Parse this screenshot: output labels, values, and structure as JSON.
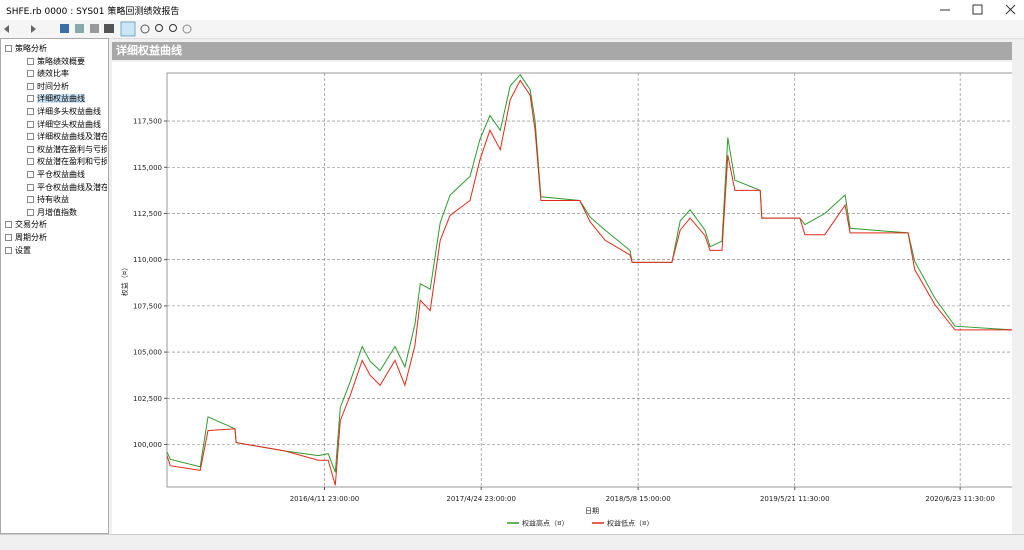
{
  "window": {
    "title": "SHFE.rb 0000 : SYS01 策略回测绩效报告"
  },
  "tree": {
    "items": [
      {
        "label": "策略分析",
        "level": 0
      },
      {
        "label": "策略绩效概要",
        "level": 1
      },
      {
        "label": "绩效比率",
        "level": 1
      },
      {
        "label": "时间分析",
        "level": 1
      },
      {
        "label": "详细权益曲线",
        "level": 1
      },
      {
        "label": "详细多头权益曲线",
        "level": 1
      },
      {
        "label": "详细空头权益曲线",
        "level": 1
      },
      {
        "label": "详细权益曲线及潜在",
        "level": 1
      },
      {
        "label": "权益潜在盈利与亏损",
        "level": 1
      },
      {
        "label": "权益潜在盈利和亏损",
        "level": 1
      },
      {
        "label": "平仓权益曲线",
        "level": 1
      },
      {
        "label": "平仓权益曲线及潜在",
        "level": 1
      },
      {
        "label": "持有收益",
        "level": 1
      },
      {
        "label": "月增值指数",
        "level": 1
      },
      {
        "label": "交易分析",
        "level": 0
      },
      {
        "label": "周期分析",
        "level": 0
      },
      {
        "label": "设置",
        "level": 0
      }
    ]
  },
  "panel": {
    "title": "详细权益曲线"
  },
  "chart_data": {
    "type": "line",
    "xlabel": "日期",
    "ylabel": "权益（¤）",
    "x": [
      "2015/3/29",
      "2015/4/6",
      "2015/6/17",
      "2015/7/6",
      "2015/9/9",
      "2015/9/12",
      "2016/1/8",
      "2016/3/28",
      "2016/4/21",
      "2016/5/8",
      "2016/5/20",
      "2016/6/13",
      "2016/7/12",
      "2016/7/31",
      "2016/8/24",
      "2016/9/29",
      "2016/10/23",
      "2016/11/16",
      "2016/11/29",
      "2016/12/23",
      "2017/1/16",
      "2017/2/9",
      "2017/3/29",
      "2017/4/22",
      "2017/5/16",
      "2017/6/10",
      "2017/7/4",
      "2017/7/28",
      "2017/8/21",
      "2017/9/2",
      "2017/9/16",
      "2017/12/19",
      "2018/1/13",
      "2018/2/18",
      "2018/4/19",
      "2018/4/24",
      "2018/7/29",
      "2018/8/18",
      "2018/9/11",
      "2018/10/17",
      "2018/10/29",
      "2018/11/27",
      "2018/12/11",
      "2018/12/28",
      "2019/2/27",
      "2019/3/3",
      "2019/6/3",
      "2019/6/15",
      "2019/8/2",
      "2019/9/20",
      "2019/10/2",
      "2020/2/19",
      "2020/3/6",
      "2020/4/24",
      "2020/6/11",
      "2020/10/29"
    ],
    "series": [
      {
        "name": "权益高点（¤）",
        "color": "#2e9a2e",
        "values": [
          99600,
          99200,
          98800,
          101500,
          100850,
          100100,
          99650,
          99400,
          99500,
          98500,
          102000,
          103400,
          105300,
          104500,
          104000,
          105300,
          104200,
          106500,
          108700,
          108400,
          112000,
          113500,
          114500,
          116500,
          117800,
          117000,
          119400,
          120000,
          119200,
          117500,
          113400,
          113200,
          112300,
          111600,
          110500,
          109850,
          109850,
          112100,
          112700,
          111600,
          110700,
          111000,
          116600,
          114300,
          113750,
          112250,
          112250,
          111900,
          112500,
          113500,
          111700,
          111450,
          109900,
          107900,
          106400,
          106200
        ]
      },
      {
        "name": "权益低点（¤）",
        "color": "#e02a1a",
        "values": [
          99400,
          98850,
          98600,
          100750,
          100850,
          100100,
          99650,
          99150,
          99150,
          97800,
          101300,
          102650,
          104550,
          103750,
          103200,
          104550,
          103200,
          105350,
          107800,
          107250,
          111050,
          112400,
          113200,
          115400,
          117000,
          115950,
          118650,
          119700,
          118900,
          117000,
          113200,
          113200,
          112050,
          111050,
          110250,
          109850,
          109850,
          111600,
          112250,
          111300,
          110500,
          110500,
          115650,
          113750,
          113750,
          112250,
          112250,
          111350,
          111350,
          112950,
          111450,
          111450,
          109450,
          107550,
          106200,
          106200
        ]
      }
    ],
    "xlim": [
      "2015/3/29",
      "2020/10/29"
    ],
    "xticks": [
      "2016/4/11 23:00:00",
      "2017/4/24 23:00:00",
      "2018/5/8 15:00:00",
      "2019/5/21 11:30:00",
      "2020/6/23 11:30:00"
    ],
    "ylim": [
      97700,
      120100
    ],
    "yticks": [
      {
        "value": 100000,
        "label": "100,000"
      },
      {
        "value": 102500,
        "label": "102,500"
      },
      {
        "value": 105000,
        "label": "105,000"
      },
      {
        "value": 107500,
        "label": "107,500"
      },
      {
        "value": 110000,
        "label": "110,000"
      },
      {
        "value": 112500,
        "label": "112,500"
      },
      {
        "value": 115000,
        "label": "115,000"
      },
      {
        "value": 117500,
        "label": "117,500"
      }
    ],
    "grid": true
  }
}
